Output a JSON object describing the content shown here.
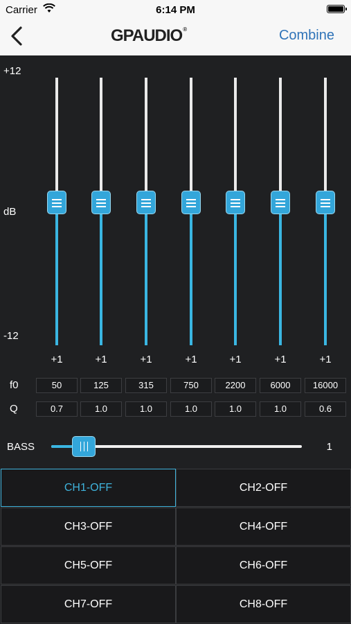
{
  "status": {
    "carrier": "Carrier",
    "time": "6:14 PM"
  },
  "nav": {
    "logo": "GPAUDIO",
    "logo_mark": "®",
    "right_button": "Combine"
  },
  "eq": {
    "scale_top": "+12",
    "scale_mid": "dB",
    "scale_bottom": "-12",
    "bands": [
      {
        "gain": "+1",
        "f0": "50",
        "q": "0.7"
      },
      {
        "gain": "+1",
        "f0": "125",
        "q": "1.0"
      },
      {
        "gain": "+1",
        "f0": "315",
        "q": "1.0"
      },
      {
        "gain": "+1",
        "f0": "750",
        "q": "1.0"
      },
      {
        "gain": "+1",
        "f0": "2200",
        "q": "1.0"
      },
      {
        "gain": "+1",
        "f0": "6000",
        "q": "1.0"
      },
      {
        "gain": "+1",
        "f0": "16000",
        "q": "0.6"
      }
    ],
    "f0_label": "f0",
    "q_label": "Q"
  },
  "bass": {
    "label": "BASS",
    "value": "1",
    "level": 0.09
  },
  "channels": [
    {
      "label": "CH1-OFF",
      "selected": true
    },
    {
      "label": "CH2-OFF",
      "selected": false
    },
    {
      "label": "CH3-OFF",
      "selected": false
    },
    {
      "label": "CH4-OFF",
      "selected": false
    },
    {
      "label": "CH5-OFF",
      "selected": false
    },
    {
      "label": "CH6-OFF",
      "selected": false
    },
    {
      "label": "CH7-OFF",
      "selected": false
    },
    {
      "label": "CH8-OFF",
      "selected": false
    }
  ],
  "colors": {
    "accent": "#3ab6e2",
    "background": "#1f2022",
    "nav_link": "#2f73b8"
  },
  "icons": {
    "back": "chevron-left-icon",
    "wifi": "wifi-icon",
    "battery": "battery-icon"
  }
}
